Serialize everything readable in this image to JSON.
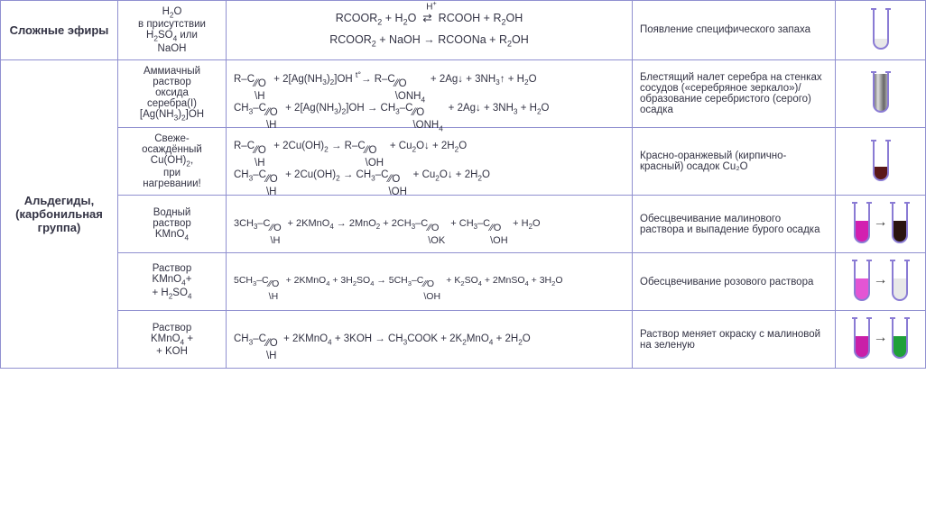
{
  "categories": {
    "esters": "Сложные эфиры",
    "aldehydes": "Альдегиды, (карбонильная группа)"
  },
  "rows": [
    {
      "reagent": "H₂O в присутствии H₂SO₄ или NaOH",
      "reaction": "RCOOR₂ + H₂O ⇄ RCOOH + R₂OH   (над стрелкой H⁺)\nRCOOR₂ + NaOH → RCOONa + R₂OH",
      "observation": "Появление специфического запаха",
      "tube_colors": [
        {
          "fill": "#e8e8e8",
          "level": 0.25
        }
      ]
    },
    {
      "reagent": "Аммиачный раствор оксида серебра(I) [Ag(NH₃)₂]OH",
      "reaction": "R–CHO + 2[Ag(NH₃)₂]OH → R–COONH₄ + 2Ag↓ + 3NH₃↑ + H₂O\nCH₃–CHO + 2[Ag(NH₃)₂]OH → CH₃–COONH₄ + 2Ag↓ + 3NH₃ + H₂O",
      "observation": "Блестящий налет серебра на стенках сосудов («серебряное зеркало»)/ образование серебристого (серого) осадка",
      "tube_colors": [
        {
          "fill": "#888888",
          "level": 0.55,
          "mirror": true
        }
      ]
    },
    {
      "reagent": "Свеже-осаждённый Cu(OH)₂, при нагревании!",
      "reaction": "R–CHO + 2Cu(OH)₂ → R–COOH + Cu₂O↓ + 2H₂O\nCH₃–CHO + 2Cu(OH)₂ → CH₃–COOH + Cu₂O↓ + 2H₂O",
      "observation": "Красно-оранжевый (кирпично-красный) осадок Cu₂O",
      "tube_colors": [
        {
          "fill": "#5a1818",
          "level": 0.35
        }
      ]
    },
    {
      "reagent": "Водный раствор KMnO₄",
      "reaction": "3CH₃–CHO + 2KMnO₄ → 2MnO₂ + 2CH₃–COOK + CH₃–COOH + H₂O",
      "observation": "Обесцвечивание малинового раствора и выпадение бурого осадка",
      "tube_colors": [
        {
          "fill": "#d21fb0",
          "level": 0.55
        },
        {
          "fill": "#2a1410",
          "level": 0.55
        }
      ],
      "show_arrow": true
    },
    {
      "reagent": "Раствор KMnO₄+ + H₂SO₄",
      "reaction": "5CH₃–CHO + 2KMnO₄ + 3H₂SO₄ → 5CH₃–COOH + K₂SO₄ + 2MnSO₄ + 3H₂O",
      "observation": "Обесцвечивание розового раствора",
      "tube_colors": [
        {
          "fill": "#e355d4",
          "level": 0.55
        },
        {
          "fill": "#e8e8e8",
          "level": 0.55
        }
      ],
      "show_arrow": true
    },
    {
      "reagent": "Раствор KMnO₄ + + KOH",
      "reaction": "CH₃–CHO + 2KMnO₄ + 3KOH → CH₃COOK + 2K₂MnO₄ + 2H₂O",
      "observation": "Раствор меняет окраску с малиновой на зеленую",
      "tube_colors": [
        {
          "fill": "#c91fa8",
          "level": 0.55
        },
        {
          "fill": "#1fa038",
          "level": 0.55
        }
      ],
      "show_arrow": true
    }
  ],
  "style": {
    "border_color": "#9090d0",
    "tube_stroke": "#8a7bd4",
    "tube_width": 22,
    "tube_height": 52,
    "font_main": 12
  }
}
